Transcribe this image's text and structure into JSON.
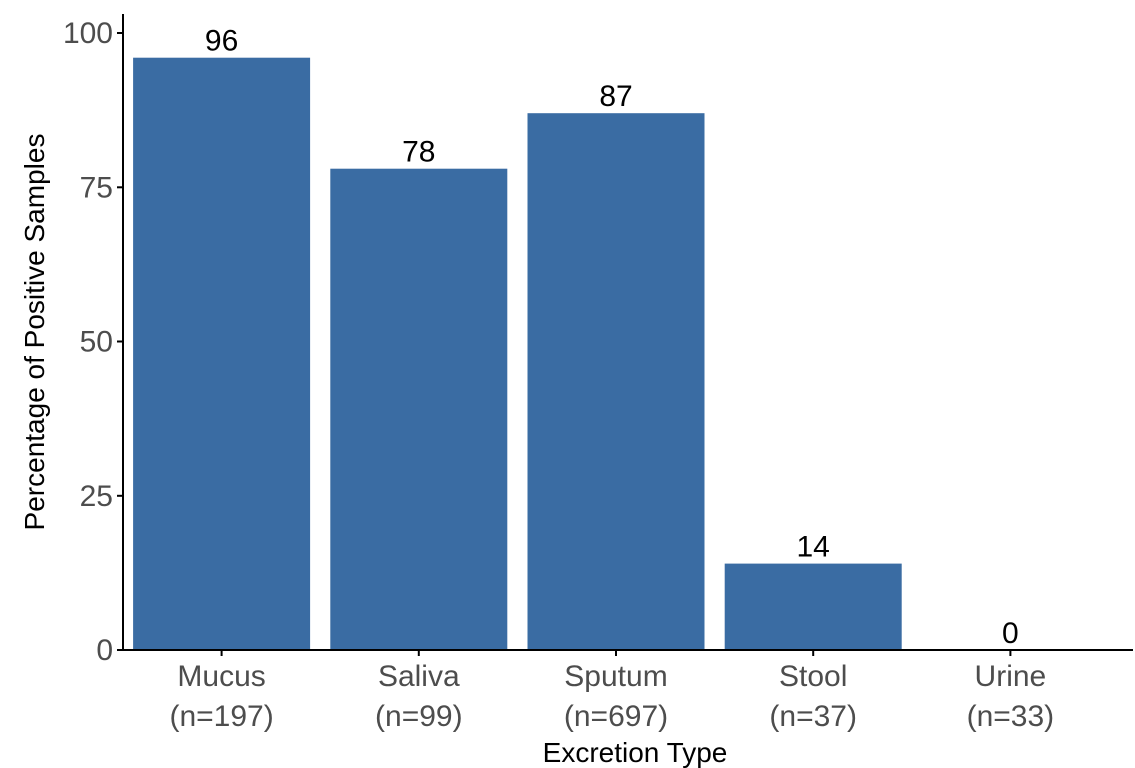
{
  "chart_data": {
    "type": "bar",
    "title": "",
    "xlabel": "Excretion Type",
    "ylabel": "Percentage of Positive Samples",
    "categories": [
      "Mucus",
      "Saliva",
      "Sputum",
      "Stool",
      "Urine"
    ],
    "category_sublabels": [
      "(n=197)",
      "(n=99)",
      "(n=697)",
      "(n=37)",
      "(n=33)"
    ],
    "values": [
      96,
      78,
      87,
      14,
      0
    ],
    "data_labels": [
      "96",
      "78",
      "87",
      "14",
      "0"
    ],
    "ylim": [
      0,
      100
    ],
    "yticks": [
      0,
      25,
      50,
      75,
      100
    ],
    "ytick_labels": [
      "0",
      "25",
      "50",
      "75",
      "100"
    ],
    "grid": false,
    "legend": "none",
    "colors": {
      "bar": "#3a6ca3",
      "axis": "#000000",
      "tick_text": "#4d4d4d"
    }
  }
}
